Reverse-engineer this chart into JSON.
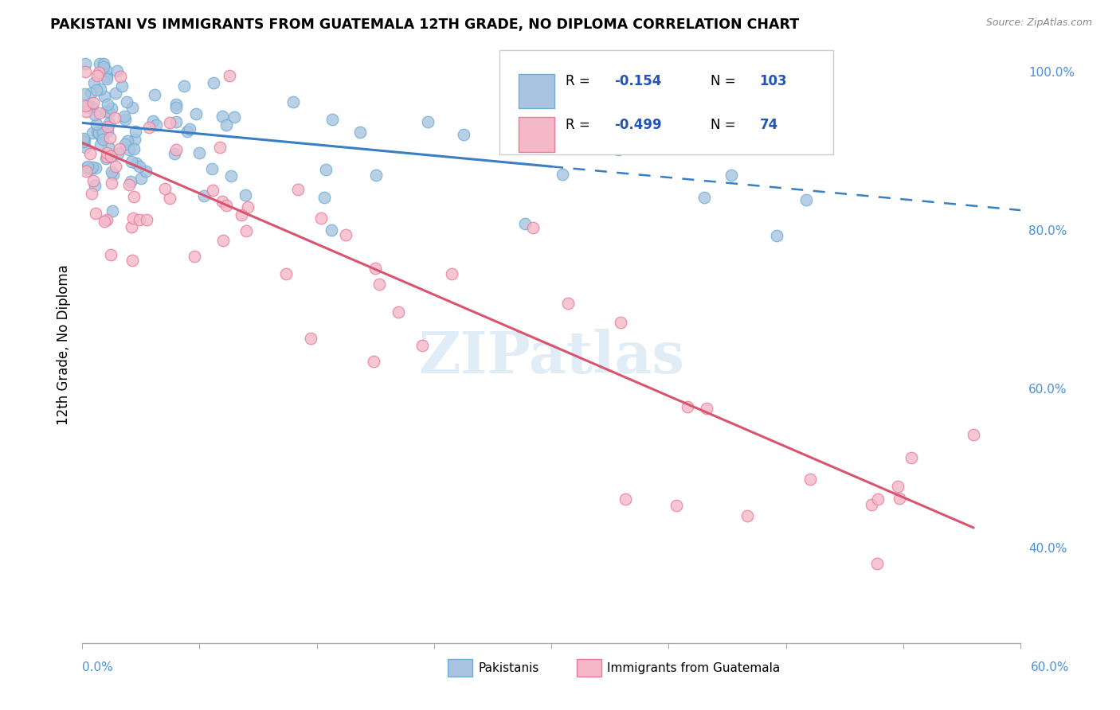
{
  "title": "PAKISTANI VS IMMIGRANTS FROM GUATEMALA 12TH GRADE, NO DIPLOMA CORRELATION CHART",
  "source": "Source: ZipAtlas.com",
  "ylabel": "12th Grade, No Diploma",
  "R_blue": -0.154,
  "N_blue": 103,
  "R_pink": -0.499,
  "N_pink": 74,
  "blue_color": "#a8c4e0",
  "blue_edge": "#6aaed6",
  "blue_line_color": "#3a7fc1",
  "pink_color": "#f4b8c8",
  "pink_edge": "#e87a9a",
  "pink_line_color": "#d9546e",
  "watermark_color": "#c8dff0",
  "axis_label_color": "#4a90d9",
  "grid_color": "#dddddd",
  "xlim": [
    0,
    60
  ],
  "ylim": [
    28,
    103
  ],
  "yticks": [
    40,
    60,
    80,
    100
  ],
  "ytick_labels": [
    "40.0%",
    "60.0%",
    "80.0%",
    "100.0%"
  ],
  "blue_line_x0": 0,
  "blue_line_y0": 93.5,
  "blue_line_x1": 60,
  "blue_line_y1": 82.5,
  "blue_solid_end_x": 30,
  "pink_line_x0": 0,
  "pink_line_y0": 91.0,
  "pink_line_x1": 57,
  "pink_line_y1": 42.5,
  "legend_R_color": "#2255bb",
  "legend_N_color": "#2255bb",
  "legend_Rval_color": "#2255bb",
  "legend_Nval_color": "#2255bb"
}
